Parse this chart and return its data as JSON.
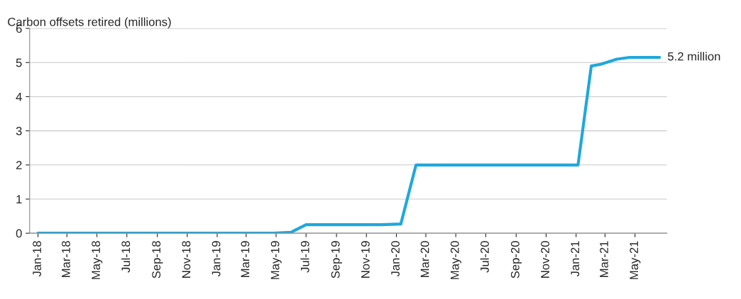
{
  "chart_data": {
    "type": "line",
    "ylabel": "Carbon offsets retired (millions)",
    "series": [
      {
        "color": "#1fa8dc",
        "x": [
          "2018-01-01",
          "2019-04-25",
          "2019-06-01",
          "2019-07-01",
          "2019-12-01",
          "2020-01-10",
          "2020-02-10",
          "2021-01-05",
          "2021-02-01",
          "2021-02-20",
          "2021-03-25",
          "2021-04-20",
          "2021-06-20"
        ],
        "values": [
          0,
          0,
          0.03,
          0.25,
          0.25,
          0.27,
          2.0,
          2.0,
          4.9,
          4.95,
          5.1,
          5.15,
          5.15
        ]
      }
    ],
    "xlim": [
      "2017-12-15",
      "2021-07-05"
    ],
    "xticks": [
      {
        "value": "2018-01-01",
        "label": "Jan-18"
      },
      {
        "value": "2018-03-01",
        "label": "Mar-18"
      },
      {
        "value": "2018-05-01",
        "label": "May-18"
      },
      {
        "value": "2018-07-01",
        "label": "Jul-18"
      },
      {
        "value": "2018-09-01",
        "label": "Sep-18"
      },
      {
        "value": "2018-11-01",
        "label": "Nov-18"
      },
      {
        "value": "2019-01-01",
        "label": "Jan-19"
      },
      {
        "value": "2019-03-01",
        "label": "Mar-19"
      },
      {
        "value": "2019-05-01",
        "label": "May-19"
      },
      {
        "value": "2019-07-01",
        "label": "Jul-19"
      },
      {
        "value": "2019-09-01",
        "label": "Sep-19"
      },
      {
        "value": "2019-11-01",
        "label": "Nov-19"
      },
      {
        "value": "2020-01-01",
        "label": "Jan-20"
      },
      {
        "value": "2020-03-01",
        "label": "Mar-20"
      },
      {
        "value": "2020-05-01",
        "label": "May-20"
      },
      {
        "value": "2020-07-01",
        "label": "Jul-20"
      },
      {
        "value": "2020-09-01",
        "label": "Sep-20"
      },
      {
        "value": "2020-11-01",
        "label": "Nov-20"
      },
      {
        "value": "2021-01-01",
        "label": "Jan-21"
      },
      {
        "value": "2021-03-01",
        "label": "Mar-21"
      },
      {
        "value": "2021-05-01",
        "label": "May-21"
      }
    ],
    "ylim": [
      0,
      6
    ],
    "yticks": [
      0,
      1,
      2,
      3,
      4,
      5,
      6
    ],
    "grid": "y",
    "legend": false,
    "marker": "none",
    "line_style": "solid",
    "annotations": [
      {
        "text": "5.2 million",
        "x": "2021-06-20",
        "y": 5.15
      }
    ]
  }
}
